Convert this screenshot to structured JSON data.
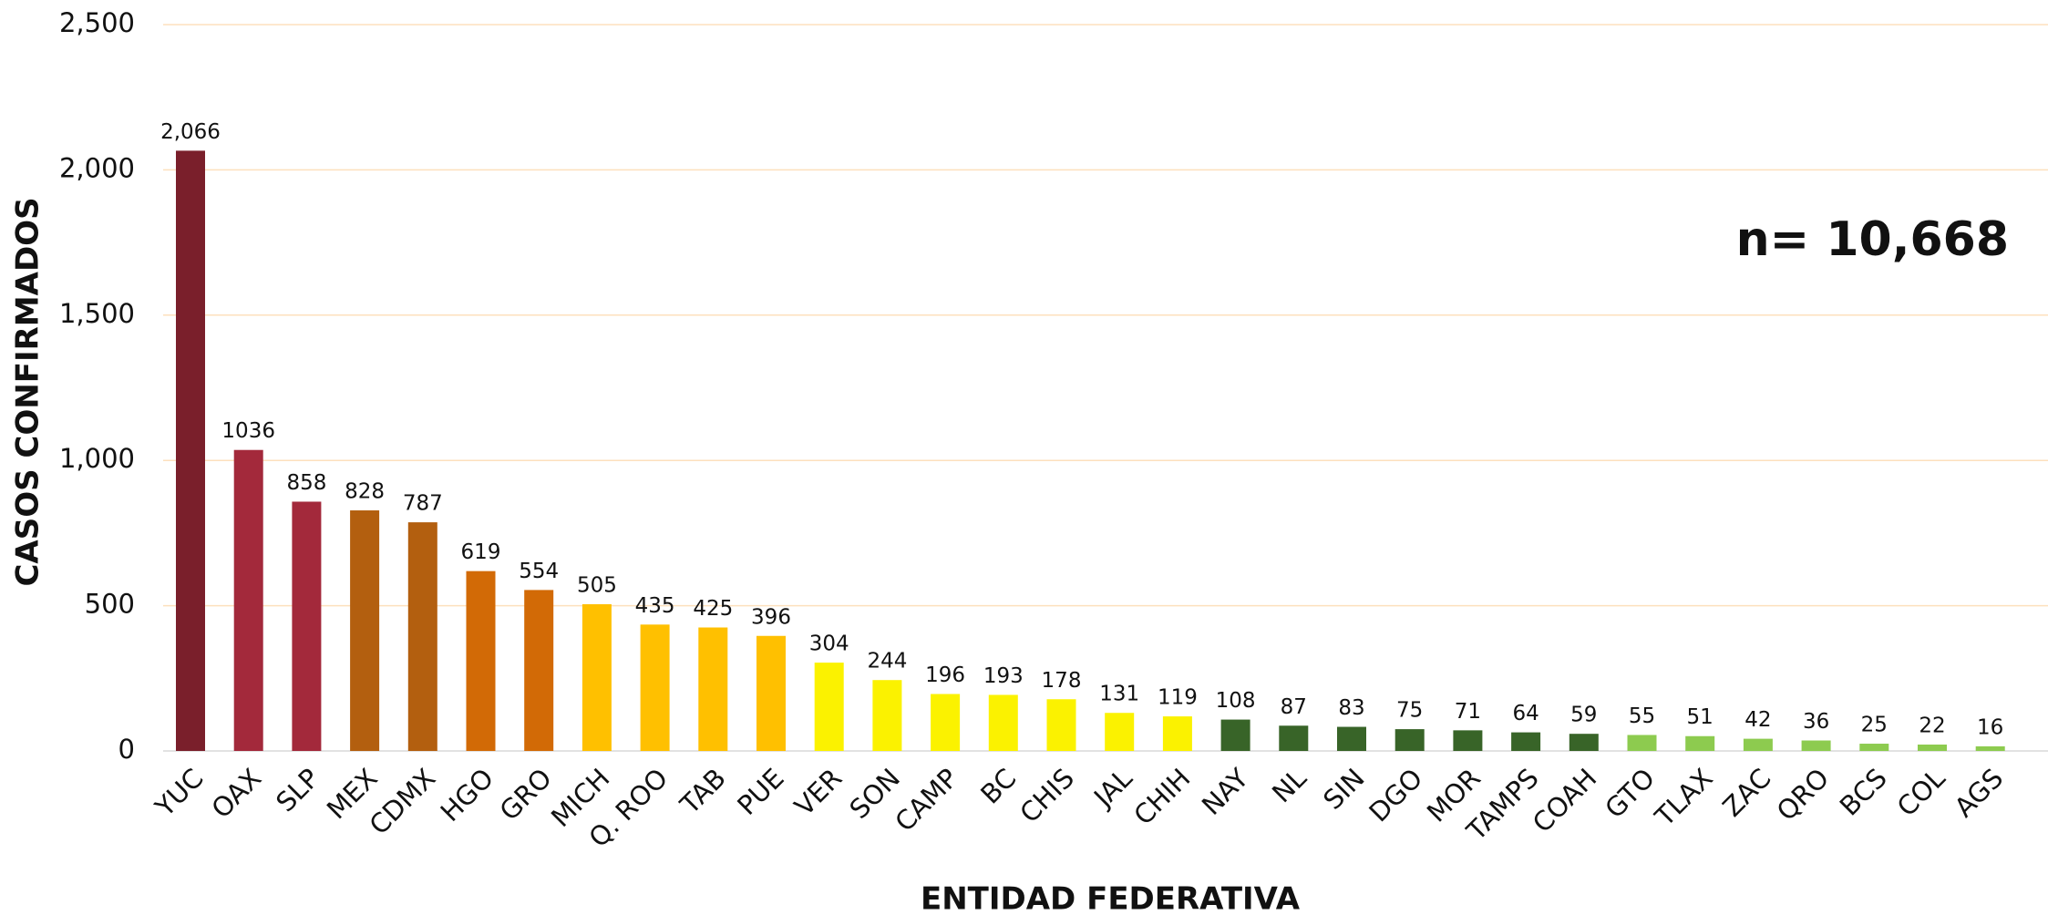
{
  "chart_data": {
    "type": "bar",
    "x_label": "ENTIDAD FEDERATIVA",
    "y_label": "CASOS CONFIRMADOS",
    "annotation": "n= 10,668",
    "categories": [
      "YUC",
      "OAX",
      "SLP",
      "MEX",
      "CDMX",
      "HGO",
      "GRO",
      "MICH",
      "Q. ROO",
      "TAB",
      "PUE",
      "VER",
      "SON",
      "CAMP",
      "BC",
      "CHIS",
      "JAL",
      "CHIH",
      "NAY",
      "NL",
      "SIN",
      "DGO",
      "MOR",
      "TAMPS",
      "COAH",
      "GTO",
      "TLAX",
      "ZAC",
      "QRO",
      "BCS",
      "COL",
      "AGS"
    ],
    "values": [
      2066,
      1036,
      858,
      828,
      787,
      619,
      554,
      505,
      435,
      425,
      396,
      304,
      244,
      196,
      193,
      178,
      131,
      119,
      108,
      87,
      83,
      75,
      71,
      64,
      59,
      55,
      51,
      42,
      36,
      25,
      22,
      16
    ],
    "value_labels": [
      "2,066",
      "1036",
      "858",
      "828",
      "787",
      "619",
      "554",
      "505",
      "435",
      "425",
      "396",
      "304",
      "244",
      "196",
      "193",
      "178",
      "131",
      "119",
      "108",
      "87",
      "83",
      "75",
      "71",
      "64",
      "59",
      "55",
      "51",
      "42",
      "36",
      "25",
      "22",
      "16"
    ],
    "colors": [
      "#7a1f2b",
      "#a3293b",
      "#a3293b",
      "#b35f0f",
      "#b35f0f",
      "#d26a06",
      "#d26a06",
      "#ffc000",
      "#ffc000",
      "#ffc000",
      "#ffc000",
      "#fbf200",
      "#fbf200",
      "#fbf200",
      "#fbf200",
      "#fbf200",
      "#fbf200",
      "#fbf200",
      "#386428",
      "#386428",
      "#386428",
      "#386428",
      "#386428",
      "#386428",
      "#386428",
      "#8dcb4f",
      "#8dcb4f",
      "#8dcb4f",
      "#8dcb4f",
      "#8dcb4f",
      "#8dcb4f",
      "#8dcb4f"
    ],
    "ylim": [
      0,
      2500
    ],
    "yticks": [
      0,
      500,
      {
        "value": 1000,
        "label": "1,000"
      },
      {
        "value": 1500,
        "label": "1,500"
      },
      {
        "value": 2000,
        "label": "2,000"
      },
      {
        "value": 2500,
        "label": "2,500"
      }
    ],
    "grid": true
  }
}
